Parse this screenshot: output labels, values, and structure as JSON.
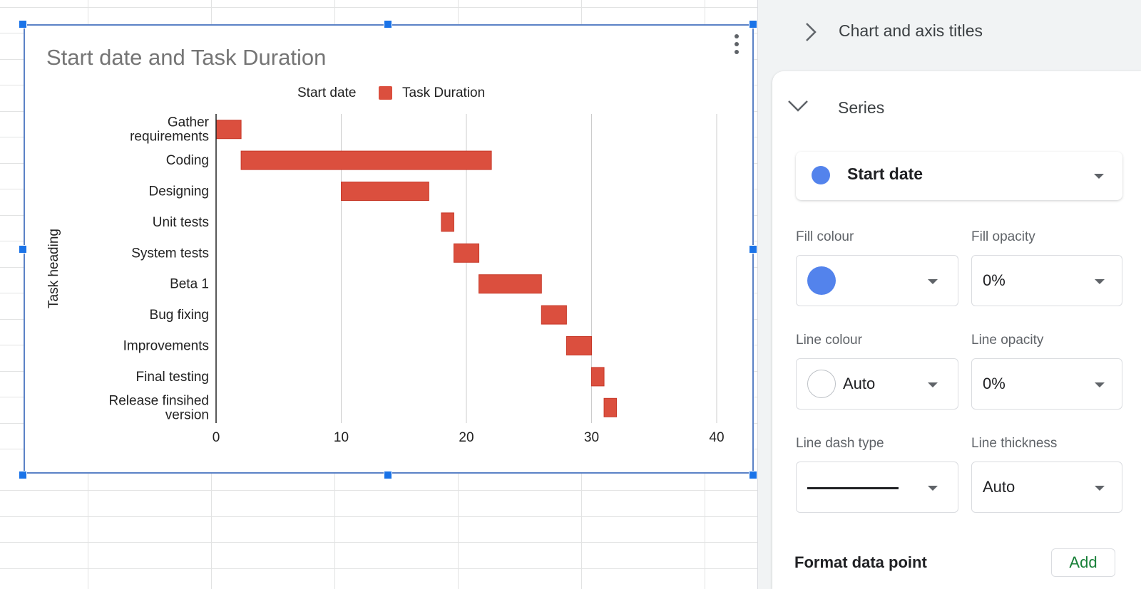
{
  "chart_data": {
    "type": "bar",
    "orientation": "horizontal",
    "stacked": true,
    "title": "Start date and Task Duration",
    "ylabel": "Task heading",
    "xlabel": "",
    "categories": [
      "Gather requirements",
      "Coding",
      "Designing",
      "Unit tests",
      "System tests",
      "Beta 1",
      "Bug fixing",
      "Improvements",
      "Final testing",
      "Release finsihed version"
    ],
    "category_lines": [
      [
        "Gather",
        "requirements"
      ],
      [
        "Coding"
      ],
      [
        "Designing"
      ],
      [
        "Unit tests"
      ],
      [
        "System tests"
      ],
      [
        "Beta 1"
      ],
      [
        "Bug fixing"
      ],
      [
        "Improvements"
      ],
      [
        "Final testing"
      ],
      [
        "Release finsihed",
        "version"
      ]
    ],
    "series": [
      {
        "name": "Start date",
        "values": [
          0,
          2,
          10,
          18,
          19,
          21,
          26,
          28,
          30,
          31
        ],
        "color": "#5383ec",
        "fill_opacity": 0
      },
      {
        "name": "Task Duration",
        "values": [
          2,
          20,
          7,
          1,
          2,
          5,
          2,
          2,
          1,
          1
        ],
        "color": "#db4f3e"
      }
    ],
    "xlim": [
      0,
      40
    ],
    "xticks": [
      0,
      10,
      20,
      30,
      40
    ],
    "grid": true,
    "legend": "top"
  },
  "panel": {
    "chart_titles_label": "Chart and axis titles",
    "series_label": "Series",
    "selected_series": "Start date",
    "fill_colour_label": "Fill colour",
    "fill_opacity_label": "Fill opacity",
    "fill_opacity_value": "0%",
    "line_colour_label": "Line colour",
    "line_colour_value": "Auto",
    "line_opacity_label": "Line opacity",
    "line_opacity_value": "0%",
    "line_dash_label": "Line dash type",
    "line_thickness_label": "Line thickness",
    "line_thickness_value": "Auto",
    "format_data_point_label": "Format data point",
    "add_label": "Add"
  },
  "colors": {
    "series_dot": "#5383ec",
    "bar": "#db4f3e",
    "add_text": "#188038",
    "selection": "#1a73e8"
  }
}
